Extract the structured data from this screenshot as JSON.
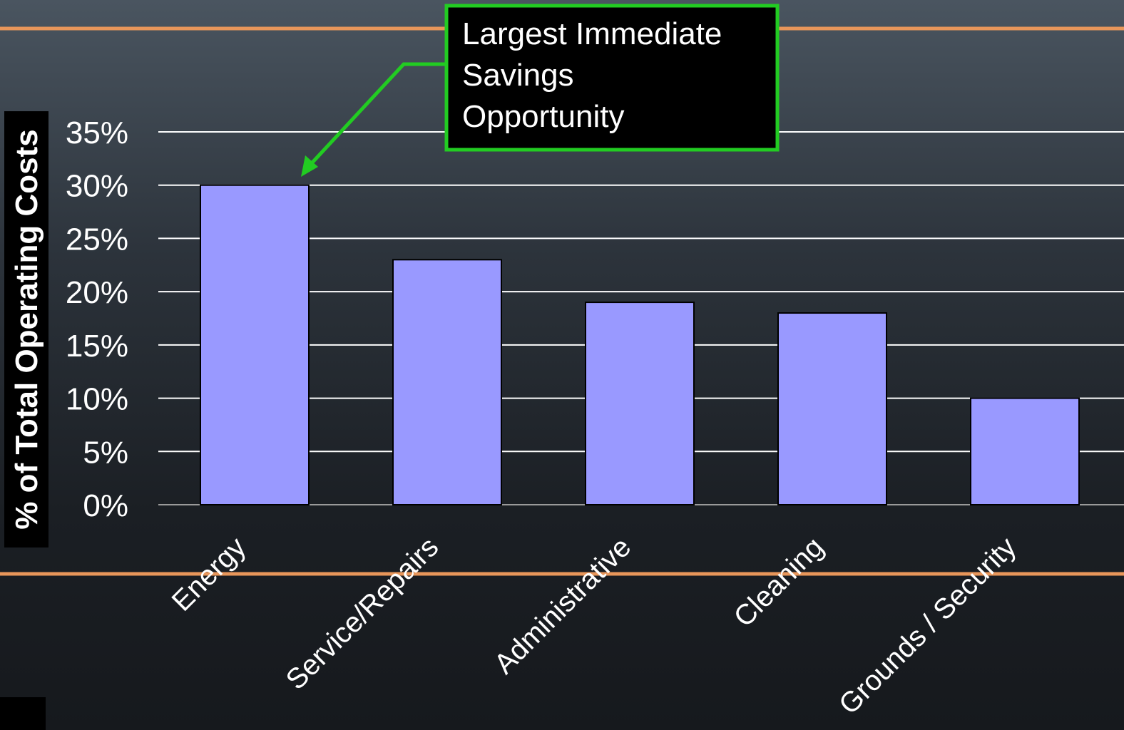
{
  "chart_data": {
    "type": "bar",
    "categories": [
      "Energy",
      "Service/Repairs",
      "Administrative",
      "Cleaning",
      "Grounds / Security"
    ],
    "values": [
      30,
      23,
      19,
      18,
      10
    ],
    "ylabel": "% of Total Operating Costs",
    "ylim": [
      0,
      35
    ],
    "yticks": [
      "0%",
      "5%",
      "10%",
      "15%",
      "20%",
      "25%",
      "30%",
      "35%"
    ],
    "grid": true,
    "bar_color": "#9999ff",
    "annotation": {
      "lines": [
        "Largest Immediate",
        "Savings",
        "Opportunity"
      ],
      "target_category": "Energy",
      "border_color": "#22cc22"
    }
  },
  "theme": {
    "accent_line_color": "#e8965a"
  }
}
